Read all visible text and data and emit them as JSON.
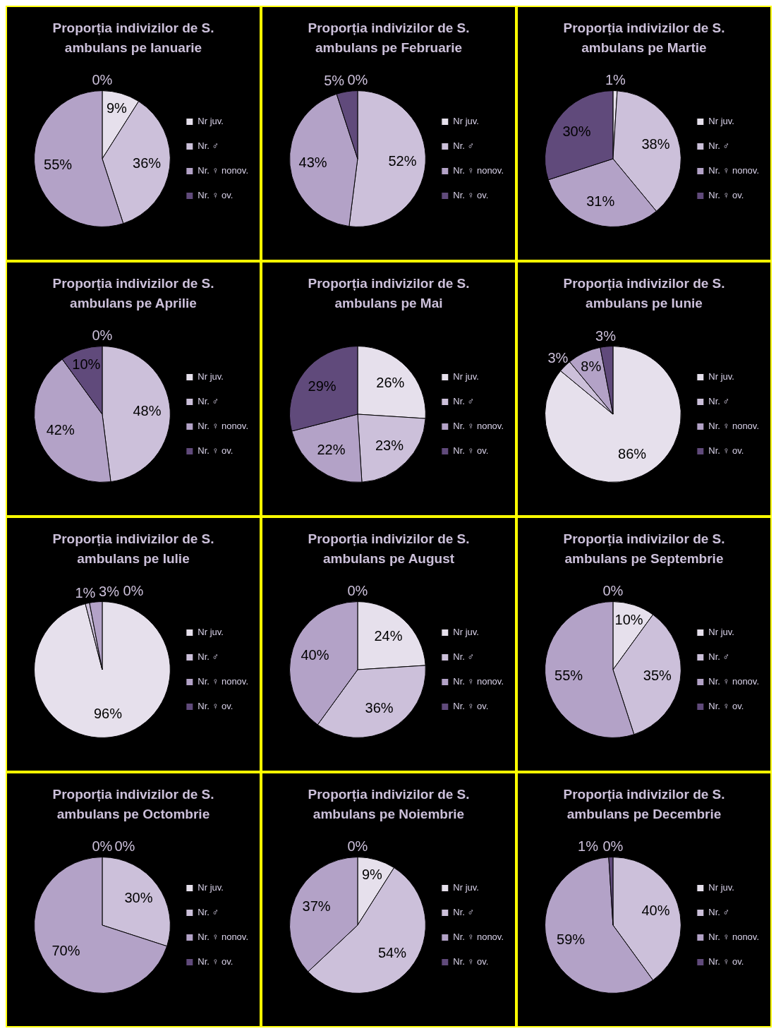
{
  "chart_data": [
    {
      "type": "pie",
      "title": "Proporția indivizilor de S. ambulans pe Ianuarie",
      "categories": [
        "Nr juv.",
        "Nr. ♂",
        "Nr. ♀ nonov.",
        "Nr. ♀ ov."
      ],
      "values": [
        9,
        36,
        55,
        0
      ],
      "value_labels": [
        "9%",
        "36%",
        "55%",
        "0%"
      ],
      "colors": [
        "#e6e0ec",
        "#ccc0da",
        "#b3a2c7",
        "#604a7b"
      ],
      "legend": "right"
    },
    {
      "type": "pie",
      "title": "Proporția indivizilor de S. ambulans pe Februarie",
      "categories": [
        "Nr juv.",
        "Nr. ♂",
        "Nr. ♀ nonov.",
        "Nr. ♀ ov."
      ],
      "values": [
        0,
        52,
        43,
        5
      ],
      "value_labels": [
        "0%",
        "52%",
        "43%",
        "5%"
      ],
      "colors": [
        "#e6e0ec",
        "#ccc0da",
        "#b3a2c7",
        "#604a7b"
      ],
      "legend": "right"
    },
    {
      "type": "pie",
      "title": "Proporția indivizilor de S. ambulans pe Martie",
      "categories": [
        "Nr juv.",
        "Nr. ♂",
        "Nr. ♀ nonov.",
        "Nr. ♀ ov."
      ],
      "values": [
        1,
        38,
        31,
        30
      ],
      "value_labels": [
        "1%",
        "38%",
        "31%",
        "30%"
      ],
      "colors": [
        "#e6e0ec",
        "#ccc0da",
        "#b3a2c7",
        "#604a7b"
      ],
      "legend": "right"
    },
    {
      "type": "pie",
      "title": "Proporția indivizilor de S. ambulans pe Aprilie",
      "categories": [
        "Nr juv.",
        "Nr. ♂",
        "Nr. ♀ nonov.",
        "Nr. ♀ ov."
      ],
      "values": [
        0,
        48,
        42,
        10
      ],
      "value_labels": [
        "0%",
        "48%",
        "42%",
        "10%"
      ],
      "colors": [
        "#e6e0ec",
        "#ccc0da",
        "#b3a2c7",
        "#604a7b"
      ],
      "legend": "right"
    },
    {
      "type": "pie",
      "title": "Proporția indivizilor de S. ambulans pe Mai",
      "categories": [
        "Nr juv.",
        "Nr. ♂",
        "Nr. ♀ nonov.",
        "Nr. ♀ ov."
      ],
      "values": [
        26,
        23,
        22,
        29
      ],
      "value_labels": [
        "26%",
        "23%",
        "22%",
        "29%"
      ],
      "colors": [
        "#e6e0ec",
        "#ccc0da",
        "#b3a2c7",
        "#604a7b"
      ],
      "legend": "right"
    },
    {
      "type": "pie",
      "title": "Proporția indivizilor de S. ambulans pe Iunie",
      "categories": [
        "Nr juv.",
        "Nr. ♂",
        "Nr. ♀ nonov.",
        "Nr. ♀ ov."
      ],
      "values": [
        86,
        3,
        8,
        3
      ],
      "value_labels": [
        "86%",
        "3%",
        "8%",
        "3%"
      ],
      "colors": [
        "#e6e0ec",
        "#ccc0da",
        "#b3a2c7",
        "#604a7b"
      ],
      "legend": "right"
    },
    {
      "type": "pie",
      "title": "Proporția indivizilor de S. ambulans pe Iulie",
      "categories": [
        "Nr juv.",
        "Nr. ♂",
        "Nr. ♀ nonov.",
        "Nr. ♀ ov."
      ],
      "values": [
        96,
        1,
        3,
        0
      ],
      "value_labels": [
        "96%",
        "1%",
        "3%",
        "0%"
      ],
      "colors": [
        "#e6e0ec",
        "#ccc0da",
        "#b3a2c7",
        "#604a7b"
      ],
      "legend": "right"
    },
    {
      "type": "pie",
      "title": "Proporția indivizilor de S. ambulans pe August",
      "categories": [
        "Nr juv.",
        "Nr. ♂",
        "Nr. ♀ nonov.",
        "Nr. ♀ ov."
      ],
      "values": [
        24,
        36,
        40,
        0
      ],
      "value_labels": [
        "24%",
        "36%",
        "40%",
        "0%"
      ],
      "colors": [
        "#e6e0ec",
        "#ccc0da",
        "#b3a2c7",
        "#604a7b"
      ],
      "legend": "right"
    },
    {
      "type": "pie",
      "title": "Proporția indivizilor de S. ambulans pe Septembrie",
      "categories": [
        "Nr juv.",
        "Nr. ♂",
        "Nr. ♀ nonov.",
        "Nr. ♀ ov."
      ],
      "values": [
        10,
        35,
        55,
        0
      ],
      "value_labels": [
        "10%",
        "35%",
        "55%",
        "0%"
      ],
      "colors": [
        "#e6e0ec",
        "#ccc0da",
        "#b3a2c7",
        "#604a7b"
      ],
      "legend": "right"
    },
    {
      "type": "pie",
      "title": "Proporția indivizilor de S. ambulans pe Octombrie",
      "categories": [
        "Nr juv.",
        "Nr. ♂",
        "Nr. ♀ nonov.",
        "Nr. ♀ ov."
      ],
      "values": [
        0,
        30,
        70,
        0
      ],
      "value_labels": [
        "0%",
        "30%",
        "70%",
        "0%"
      ],
      "colors": [
        "#e6e0ec",
        "#ccc0da",
        "#b3a2c7",
        "#604a7b"
      ],
      "legend": "right"
    },
    {
      "type": "pie",
      "title": "Proporția indivizilor de S. ambulans pe Noiembrie",
      "categories": [
        "Nr juv.",
        "Nr. ♂",
        "Nr. ♀ nonov.",
        "Nr. ♀ ov."
      ],
      "values": [
        9,
        54,
        37,
        0
      ],
      "value_labels": [
        "9%",
        "54%",
        "37%",
        "0%"
      ],
      "colors": [
        "#e6e0ec",
        "#ccc0da",
        "#b3a2c7",
        "#604a7b"
      ],
      "legend": "right"
    },
    {
      "type": "pie",
      "title": "Proporția indivizilor de S. ambulans pe Decembrie",
      "categories": [
        "Nr juv.",
        "Nr. ♂",
        "Nr. ♀ nonov.",
        "Nr. ♀ ov."
      ],
      "values": [
        0,
        40,
        59,
        1
      ],
      "value_labels": [
        "0%",
        "40%",
        "59%",
        "1%"
      ],
      "colors": [
        "#e6e0ec",
        "#ccc0da",
        "#b3a2c7",
        "#604a7b"
      ],
      "legend": "right"
    }
  ]
}
